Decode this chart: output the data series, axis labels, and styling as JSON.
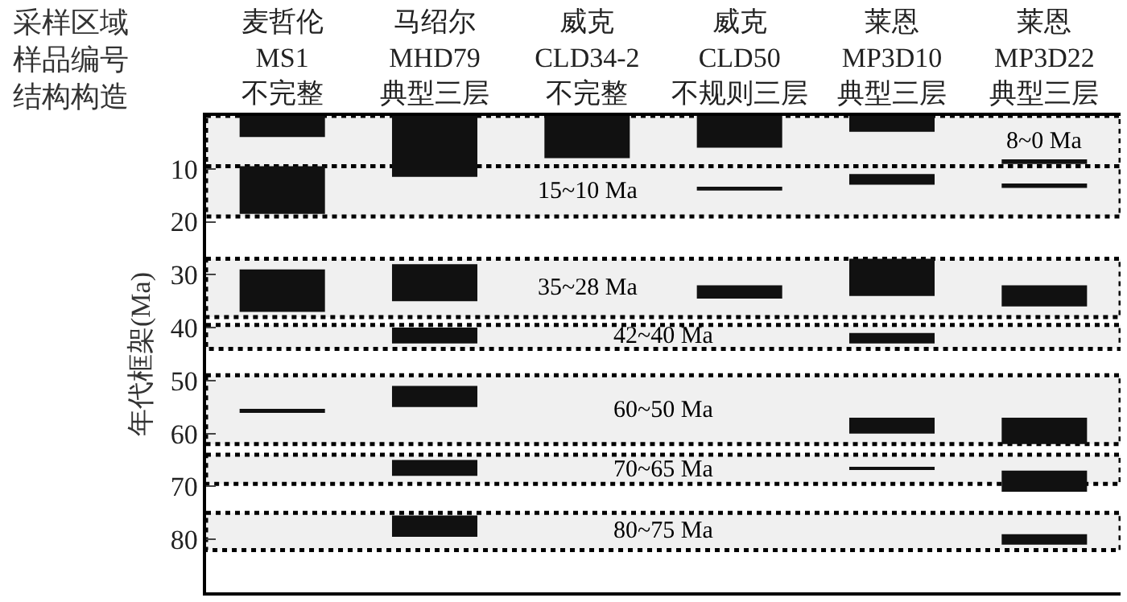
{
  "chart_data": {
    "type": "bar",
    "ylabel": "年代框架(Ma)",
    "categories": [
      "麦哲伦\nMS1\n不完整",
      "马绍尔\nMHD79\n典型三层",
      "威克\nCLD34-2\n不完整",
      "威克\nCLD50\n不规则三层",
      "莱恩\nMP3D10\n典型三层",
      "莱恩\nMP3D22\n典型三层"
    ],
    "annotations": [
      "采样区域",
      "样品编号",
      "结构构造"
    ],
    "series": [
      {
        "color": "#111111",
        "base": [
          0,
          0,
          0,
          0,
          0,
          8.5
        ],
        "values": [
          4,
          11.5,
          8,
          6,
          3,
          0.6
        ]
      },
      {
        "color": "#111111",
        "base": [
          9.5,
          28,
          null,
          13.5,
          11,
          13
        ],
        "values": [
          9,
          7,
          null,
          0.6,
          2,
          0.6
        ]
      },
      {
        "color": "#111111",
        "base": [
          29,
          40,
          null,
          32,
          27,
          32
        ],
        "values": [
          8,
          3,
          null,
          2.5,
          7,
          4
        ]
      },
      {
        "color": "#111111",
        "base": [
          55.5,
          51,
          null,
          null,
          41,
          57
        ],
        "values": [
          0.6,
          4,
          null,
          null,
          2,
          5
        ]
      },
      {
        "color": "#111111",
        "base": [
          null,
          65,
          null,
          null,
          57,
          67
        ],
        "values": [
          null,
          3,
          null,
          null,
          3,
          4
        ]
      },
      {
        "color": "#111111",
        "base": [
          null,
          75.5,
          null,
          null,
          66.3,
          79
        ],
        "values": [
          null,
          4,
          null,
          null,
          0.6,
          2
        ]
      }
    ],
    "bands": [
      {
        "axis": "y",
        "from": 0,
        "to": 9.5,
        "label": "8~0 Ma"
      },
      {
        "axis": "y",
        "from": 9.5,
        "to": 19,
        "label": "15~10 Ma"
      },
      {
        "axis": "y",
        "from": 27,
        "to": 38,
        "label": "35~28 Ma"
      },
      {
        "axis": "y",
        "from": 39.5,
        "to": 44,
        "label": "42~40 Ma"
      },
      {
        "axis": "y",
        "from": 49,
        "to": 62,
        "label": "60~50 Ma"
      },
      {
        "axis": "y",
        "from": 64,
        "to": 69.5,
        "label": "70~65 Ma"
      },
      {
        "axis": "y",
        "from": 75,
        "to": 82,
        "label": "80~75 Ma"
      }
    ],
    "ylim": [
      90,
      0
    ],
    "yticks": [
      10,
      20,
      30,
      40,
      50,
      60,
      70,
      80
    ],
    "grid": false
  }
}
